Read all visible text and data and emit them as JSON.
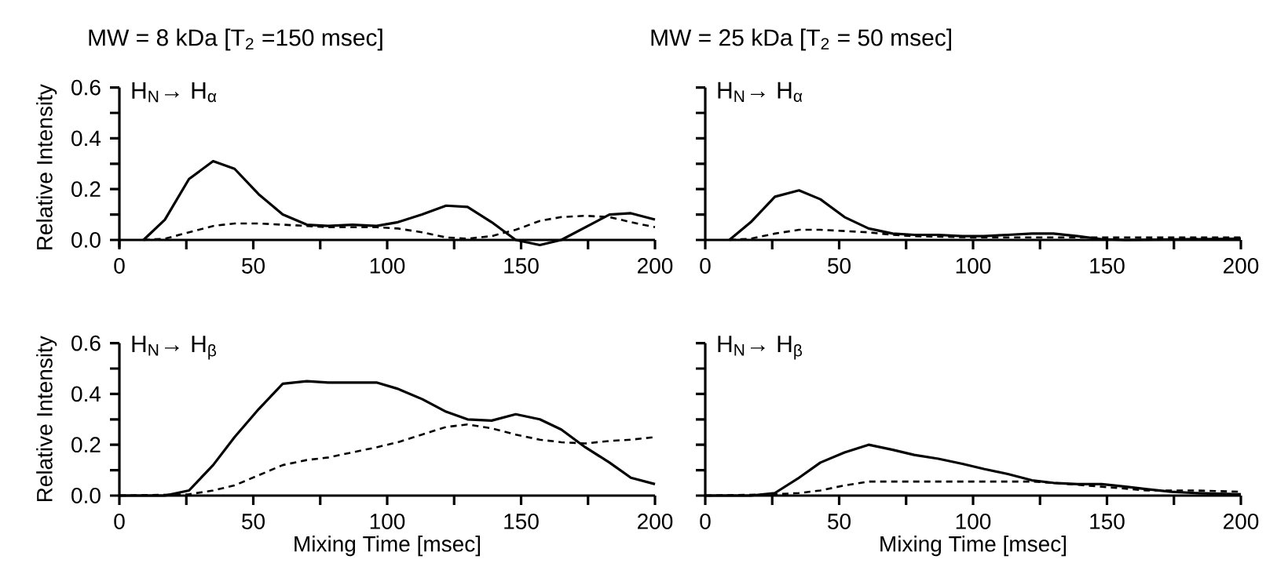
{
  "chart_data": [
    {
      "type": "line",
      "title": "MW = 8 kDa  [T$_{2}$ =150 msec]",
      "ylabel": "Relative Intensity",
      "annotations": [
        "H$_{N}$→ H$_{α}$"
      ],
      "xlim": [
        0,
        200
      ],
      "ylim": [
        -0.03,
        0.6
      ],
      "xticks": [
        0,
        {
          "value": 25,
          "label": null
        },
        50,
        {
          "value": 75,
          "label": null
        },
        100,
        {
          "value": 125,
          "label": null
        },
        150,
        {
          "value": 175,
          "label": null
        },
        200
      ],
      "yticks": [
        {
          "value": 0,
          "label": "0.0"
        },
        {
          "value": 0.1,
          "label": null
        },
        {
          "value": 0.2,
          "label": "0.2"
        },
        {
          "value": 0.3,
          "label": null
        },
        {
          "value": 0.4,
          "label": "0.4"
        },
        {
          "value": 0.5,
          "label": null
        },
        {
          "value": 0.6,
          "label": "0.6"
        }
      ],
      "series": [
        {
          "color": "#000000",
          "line_style": "solid",
          "x": [
            9,
            17,
            26,
            35,
            43,
            52,
            61,
            70,
            78,
            87,
            96,
            104,
            113,
            122,
            130,
            139,
            148,
            157,
            165,
            174,
            183,
            191,
            200
          ],
          "values": [
            0,
            0.08,
            0.24,
            0.31,
            0.28,
            0.18,
            0.1,
            0.06,
            0.055,
            0.06,
            0.055,
            0.07,
            0.1,
            0.135,
            0.13,
            0.07,
            0.0,
            -0.02,
            0,
            0.05,
            0.1,
            0.105,
            0.08
          ]
        },
        {
          "color": "#000000",
          "line_style": "dashed",
          "x": [
            9,
            17,
            26,
            35,
            43,
            52,
            61,
            70,
            78,
            87,
            96,
            104,
            113,
            122,
            130,
            139,
            148,
            157,
            165,
            174,
            183,
            191,
            200
          ],
          "values": [
            0,
            0.005,
            0.03,
            0.055,
            0.065,
            0.065,
            0.06,
            0.055,
            0.05,
            0.05,
            0.05,
            0.045,
            0.03,
            0.01,
            0.005,
            0.015,
            0.04,
            0.075,
            0.09,
            0.095,
            0.09,
            0.07,
            0.05
          ]
        }
      ]
    },
    {
      "type": "line",
      "title": "MW = 25 kDa [T$_{2}$ = 50 msec]",
      "annotations": [
        "H$_{N}$→ H$_{α}$"
      ],
      "tick_labels": "x",
      "xlim": [
        0,
        200
      ],
      "ylim": [
        0,
        0.6
      ],
      "xticks": [
        0,
        {
          "value": 25,
          "label": null
        },
        50,
        {
          "value": 75,
          "label": null
        },
        100,
        {
          "value": 125,
          "label": null
        },
        150,
        {
          "value": 175,
          "label": null
        },
        200
      ],
      "yticks": [
        {
          "value": 0,
          "label": null
        },
        {
          "value": 0.1,
          "label": null
        },
        {
          "value": 0.2,
          "label": null
        },
        {
          "value": 0.3,
          "label": null
        },
        {
          "value": 0.4,
          "label": null
        },
        {
          "value": 0.5,
          "label": null
        },
        {
          "value": 0.6,
          "label": null
        }
      ],
      "series": [
        {
          "color": "#000000",
          "line_style": "solid",
          "x": [
            9,
            17,
            26,
            35,
            43,
            52,
            61,
            70,
            78,
            87,
            96,
            104,
            113,
            122,
            130,
            139,
            148,
            157,
            200
          ],
          "values": [
            0,
            0.07,
            0.17,
            0.195,
            0.16,
            0.09,
            0.045,
            0.025,
            0.02,
            0.02,
            0.015,
            0.015,
            0.02,
            0.025,
            0.025,
            0.015,
            0.003,
            0,
            0.005
          ]
        },
        {
          "color": "#000000",
          "line_style": "dashed",
          "x": [
            9,
            17,
            26,
            35,
            43,
            52,
            61,
            70,
            78,
            100,
            150,
            200
          ],
          "values": [
            0,
            0.005,
            0.025,
            0.04,
            0.04,
            0.035,
            0.03,
            0.02,
            0.015,
            0.01,
            0.01,
            0.01
          ]
        }
      ]
    },
    {
      "type": "line",
      "xlabel": "Mixing Time [msec]",
      "ylabel": "Relative Intensity",
      "annotations": [
        "H$_{N}$→ H$_{β}$"
      ],
      "xlim": [
        0,
        200
      ],
      "ylim": [
        0,
        0.6
      ],
      "xticks": [
        0,
        {
          "value": 25,
          "label": null
        },
        50,
        {
          "value": 75,
          "label": null
        },
        100,
        {
          "value": 125,
          "label": null
        },
        150,
        {
          "value": 175,
          "label": null
        },
        200
      ],
      "yticks": [
        {
          "value": 0,
          "label": "0.0"
        },
        {
          "value": 0.1,
          "label": null
        },
        {
          "value": 0.2,
          "label": "0.2"
        },
        {
          "value": 0.3,
          "label": null
        },
        {
          "value": 0.4,
          "label": "0.4"
        },
        {
          "value": 0.5,
          "label": null
        },
        {
          "value": 0.6,
          "label": "0.6"
        }
      ],
      "series": [
        {
          "color": "#000000",
          "line_style": "solid",
          "x": [
            0,
            17,
            26,
            35,
            43,
            52,
            61,
            70,
            78,
            87,
            96,
            104,
            113,
            122,
            130,
            139,
            148,
            157,
            165,
            174,
            183,
            191,
            200
          ],
          "values": [
            0,
            0,
            0.02,
            0.12,
            0.23,
            0.34,
            0.44,
            0.45,
            0.445,
            0.445,
            0.445,
            0.42,
            0.38,
            0.33,
            0.3,
            0.295,
            0.32,
            0.3,
            0.26,
            0.19,
            0.13,
            0.07,
            0.045
          ]
        },
        {
          "color": "#000000",
          "line_style": "dashed",
          "x": [
            0,
            26,
            35,
            43,
            52,
            61,
            70,
            78,
            87,
            96,
            104,
            113,
            122,
            130,
            139,
            148,
            157,
            165,
            174,
            183,
            191,
            200
          ],
          "values": [
            0,
            0.005,
            0.02,
            0.04,
            0.08,
            0.12,
            0.14,
            0.15,
            0.17,
            0.19,
            0.21,
            0.24,
            0.27,
            0.28,
            0.265,
            0.24,
            0.22,
            0.21,
            0.205,
            0.215,
            0.22,
            0.23
          ]
        }
      ]
    },
    {
      "type": "line",
      "xlabel": "Mixing Time [msec]",
      "annotations": [
        "H$_{N}$→ H$_{β}$"
      ],
      "tick_labels": "x",
      "xlim": [
        0,
        200
      ],
      "ylim": [
        0,
        0.6
      ],
      "xticks": [
        0,
        {
          "value": 25,
          "label": null
        },
        50,
        {
          "value": 75,
          "label": null
        },
        100,
        {
          "value": 125,
          "label": null
        },
        150,
        {
          "value": 175,
          "label": null
        },
        200
      ],
      "yticks": [
        {
          "value": 0,
          "label": null
        },
        {
          "value": 0.1,
          "label": null
        },
        {
          "value": 0.2,
          "label": null
        },
        {
          "value": 0.3,
          "label": null
        },
        {
          "value": 0.4,
          "label": null
        },
        {
          "value": 0.5,
          "label": null
        },
        {
          "value": 0.6,
          "label": null
        }
      ],
      "series": [
        {
          "color": "#000000",
          "line_style": "solid",
          "x": [
            0,
            17,
            26,
            35,
            43,
            52,
            61,
            70,
            78,
            87,
            96,
            104,
            113,
            122,
            130,
            139,
            148,
            157,
            165,
            174,
            183,
            200
          ],
          "values": [
            0,
            0,
            0.01,
            0.07,
            0.13,
            0.17,
            0.2,
            0.18,
            0.16,
            0.145,
            0.125,
            0.105,
            0.085,
            0.06,
            0.05,
            0.045,
            0.045,
            0.035,
            0.025,
            0.015,
            0.01,
            0.005
          ]
        },
        {
          "color": "#000000",
          "line_style": "dashed",
          "x": [
            0,
            26,
            35,
            43,
            52,
            61,
            78,
            100,
            122,
            130,
            148,
            165,
            183,
            200
          ],
          "values": [
            0,
            0.005,
            0.01,
            0.02,
            0.04,
            0.055,
            0.055,
            0.055,
            0.055,
            0.05,
            0.035,
            0.02,
            0.02,
            0.015
          ]
        }
      ]
    }
  ]
}
